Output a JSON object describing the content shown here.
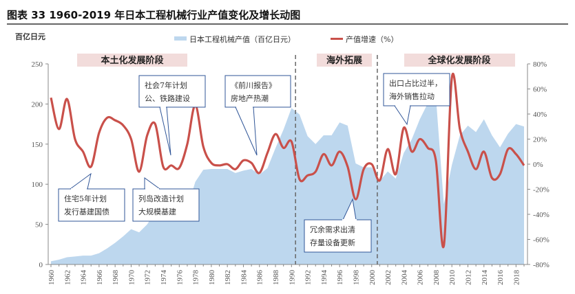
{
  "title": "图表 33   1960-2019 年日本工程机械行业产值变化及增长动图",
  "left_unit": "百亿日元",
  "colors": {
    "area": "#bdd7ee",
    "line": "#c9504a",
    "phase_bg": "#f2dcdb",
    "callout_border": "#2f5597"
  },
  "phases": [
    "本土化发展阶段",
    "海外拓展",
    "全球化发展阶段"
  ],
  "annotations": [
    {
      "lines": [
        "社会7年计划",
        "公、铁路建设"
      ],
      "year": 1975
    },
    {
      "lines": [
        "《前川报告》",
        "房地产热潮"
      ],
      "year": 1986
    },
    {
      "lines": [
        "住宅5年计划",
        "发行基建国债"
      ],
      "year": 1965
    },
    {
      "lines": [
        "列岛改造计划",
        "大规模基建"
      ],
      "year": 1971
    },
    {
      "lines": [
        "冗余需求出清",
        "存量设备更新"
      ],
      "year": 1998
    },
    {
      "lines": [
        "出口占比过半，",
        "海外销售拉动"
      ],
      "year": 2004
    }
  ],
  "chart_data": {
    "type": "area+line",
    "title": "1960-2019 年日本工程机械行业产值变化及增长动图",
    "x": [
      1960,
      1961,
      1962,
      1963,
      1964,
      1965,
      1966,
      1967,
      1968,
      1969,
      1970,
      1971,
      1972,
      1973,
      1974,
      1975,
      1976,
      1977,
      1978,
      1979,
      1980,
      1981,
      1982,
      1983,
      1984,
      1985,
      1986,
      1987,
      1988,
      1989,
      1990,
      1991,
      1992,
      1993,
      1994,
      1995,
      1996,
      1997,
      1998,
      1999,
      2000,
      2001,
      2002,
      2003,
      2004,
      2005,
      2006,
      2007,
      2008,
      2009,
      2010,
      2011,
      2012,
      2013,
      2014,
      2015,
      2016,
      2017,
      2018,
      2019
    ],
    "xticks": [
      "1960",
      "1962",
      "1964",
      "1966",
      "1968",
      "1970",
      "1972",
      "1974",
      "1976",
      "1978",
      "1980",
      "1982",
      "1984",
      "1986",
      "1988",
      "1990",
      "1992",
      "1994",
      "1996",
      "1998",
      "2000",
      "2002",
      "2004",
      "2006",
      "2008",
      "2010",
      "2012",
      "2014",
      "2016",
      "2018"
    ],
    "series": [
      {
        "name": "日本工程机械产值（百亿日元）",
        "type": "area",
        "axis": "left",
        "values": [
          4,
          6,
          9,
          10,
          11,
          11,
          14,
          20,
          27,
          35,
          44,
          40,
          50,
          65,
          68,
          62,
          62,
          70,
          103,
          118,
          119,
          119,
          119,
          114,
          117,
          119,
          112,
          120,
          145,
          168,
          195,
          187,
          160,
          150,
          161,
          161,
          177,
          173,
          126,
          121,
          121,
          104,
          116,
          107,
          139,
          156,
          181,
          201,
          210,
          75,
          124,
          161,
          173,
          165,
          181,
          161,
          146,
          163,
          175,
          172
        ]
      },
      {
        "name": "产值增速（%）",
        "type": "line",
        "axis": "right",
        "values": [
          53,
          28,
          52,
          20,
          10,
          -2,
          25,
          37,
          35,
          31,
          20,
          -6,
          23,
          32,
          -2,
          -1,
          -3,
          16,
          47,
          14,
          1,
          -1,
          0,
          -4,
          3,
          1,
          -7,
          9,
          24,
          13,
          18,
          -12,
          -9,
          -6,
          8,
          -1,
          10,
          -2,
          -28,
          -4,
          0,
          -13,
          12,
          -8,
          29,
          10,
          20,
          13,
          3,
          -65,
          69,
          28,
          10,
          -4,
          10,
          -11,
          -8,
          12,
          8,
          -1
        ]
      }
    ],
    "left_axis": {
      "ylim": [
        0,
        250
      ],
      "ticks": [
        "0",
        "50",
        "100",
        "150",
        "200",
        "250"
      ]
    },
    "right_axis": {
      "ylim": [
        -80,
        80
      ],
      "ticks": [
        "-80%",
        "-60%",
        "-40%",
        "-20%",
        "0%",
        "20%",
        "40%",
        "60%",
        "80%"
      ]
    },
    "phase_dividers": [
      1990.5,
      2000.7
    ],
    "legend_position": "top",
    "grid": false
  }
}
